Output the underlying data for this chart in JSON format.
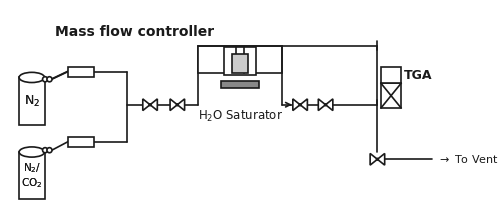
{
  "title": "Mass flow controller",
  "label_n2": "N$_2$",
  "label_n2co2": "N$_2$/\nCO$_2$",
  "label_h2o": "H$_2$O Saturator",
  "label_tga": "TGA",
  "label_vent": "$\\rightarrow$ To Vent",
  "bg_color": "#ffffff",
  "line_color": "#1a1a1a",
  "lw": 1.2
}
